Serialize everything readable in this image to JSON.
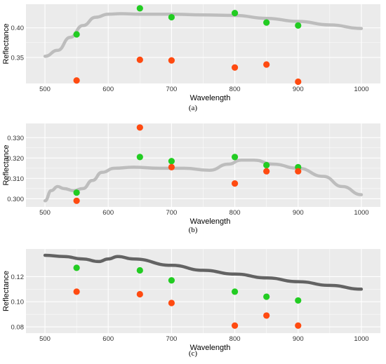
{
  "colors": {
    "panel_bg": "#ebebeb",
    "grid": "#ffffff",
    "curve_light": "#bdbdbd",
    "curve_dark": "#636363",
    "green": "#22cc22",
    "orange": "#ff4a10"
  },
  "chart_data": [
    {
      "type": "scatter",
      "caption": "(a)",
      "xlabel": "Wavelength",
      "ylabel": "Reflectance",
      "xlim": [
        470,
        1030
      ],
      "ylim": [
        0.306,
        0.44
      ],
      "xticks": [
        500,
        600,
        700,
        800,
        900,
        1000
      ],
      "yticks": [
        0.35,
        0.4
      ],
      "ytick_labels": [
        "0.35",
        "0.40"
      ],
      "curve": {
        "color": "curve_light",
        "x": [
          500,
          520,
          540,
          560,
          580,
          600,
          620,
          650,
          700,
          750,
          800,
          850,
          900,
          950,
          1000
        ],
        "y": [
          0.352,
          0.362,
          0.384,
          0.404,
          0.418,
          0.423,
          0.424,
          0.423,
          0.423,
          0.422,
          0.421,
          0.416,
          0.411,
          0.405,
          0.399
        ]
      },
      "series": [
        {
          "color": "green",
          "x": [
            550,
            650,
            700,
            800,
            850,
            900
          ],
          "y": [
            0.389,
            0.433,
            0.418,
            0.425,
            0.409,
            0.404
          ]
        },
        {
          "color": "orange",
          "x": [
            550,
            650,
            700,
            800,
            850,
            900
          ],
          "y": [
            0.311,
            0.346,
            0.345,
            0.333,
            0.338,
            0.309
          ]
        }
      ]
    },
    {
      "type": "scatter",
      "caption": "(b)",
      "xlabel": "Wavelength",
      "ylabel": "Reflectance",
      "xlim": [
        470,
        1030
      ],
      "ylim": [
        0.296,
        0.337
      ],
      "xticks": [
        500,
        600,
        700,
        800,
        900,
        1000
      ],
      "yticks": [
        0.3,
        0.31,
        0.32,
        0.33
      ],
      "ytick_labels": [
        "0.300",
        "0.310",
        "0.320",
        "0.330"
      ],
      "curve": {
        "color": "curve_light",
        "x": [
          500,
          510,
          520,
          530,
          545,
          560,
          575,
          590,
          610,
          640,
          680,
          720,
          760,
          790,
          810,
          830,
          860,
          900,
          940,
          970,
          1000
        ],
        "y": [
          0.299,
          0.304,
          0.306,
          0.305,
          0.304,
          0.305,
          0.309,
          0.313,
          0.315,
          0.3155,
          0.315,
          0.315,
          0.314,
          0.317,
          0.319,
          0.319,
          0.317,
          0.315,
          0.311,
          0.306,
          0.302
        ]
      },
      "series": [
        {
          "color": "green",
          "x": [
            550,
            650,
            700,
            800,
            850,
            900
          ],
          "y": [
            0.303,
            0.3205,
            0.3185,
            0.3205,
            0.3165,
            0.3155
          ]
        },
        {
          "color": "orange",
          "x": [
            550,
            650,
            700,
            800,
            850,
            900
          ],
          "y": [
            0.299,
            0.335,
            0.3155,
            0.3075,
            0.3135,
            0.3135
          ]
        }
      ]
    },
    {
      "type": "scatter",
      "caption": "(c)",
      "xlabel": "Wavelength",
      "ylabel": "Reflectance",
      "xlim": [
        470,
        1030
      ],
      "ylim": [
        0.075,
        0.142
      ],
      "xticks": [
        500,
        600,
        700,
        800,
        900,
        1000
      ],
      "yticks": [
        0.08,
        0.1,
        0.12
      ],
      "ytick_labels": [
        "0.08",
        "0.10",
        "0.12"
      ],
      "curve": {
        "color": "curve_dark",
        "x": [
          500,
          530,
          560,
          585,
          600,
          615,
          640,
          700,
          750,
          800,
          850,
          900,
          950,
          1000
        ],
        "y": [
          0.137,
          0.136,
          0.134,
          0.132,
          0.134,
          0.136,
          0.134,
          0.129,
          0.125,
          0.122,
          0.119,
          0.116,
          0.113,
          0.11
        ]
      },
      "series": [
        {
          "color": "green",
          "x": [
            550,
            650,
            700,
            800,
            850,
            900
          ],
          "y": [
            0.127,
            0.125,
            0.117,
            0.108,
            0.104,
            0.101
          ]
        },
        {
          "color": "orange",
          "x": [
            550,
            650,
            700,
            800,
            850,
            900
          ],
          "y": [
            0.108,
            0.106,
            0.099,
            0.081,
            0.089,
            0.081
          ]
        }
      ]
    }
  ]
}
